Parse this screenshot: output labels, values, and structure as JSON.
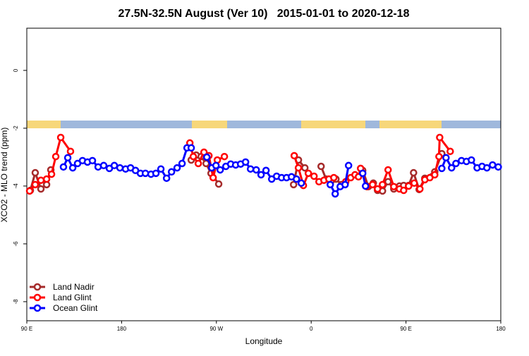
{
  "chart_data": {
    "type": "line",
    "title": "27.5N-32.5N August (Ver 10)   2015-01-01 to 2020-12-18",
    "x_label": "Longitude",
    "y_label": "XCO2 - MLO trend (ppm)",
    "xlim": [
      90,
      540
    ],
    "ylim": [
      -8.66,
      1.46
    ],
    "xticks": [
      {
        "value": 90,
        "label": "90 E"
      },
      {
        "value": 180,
        "label": "180"
      },
      {
        "value": 270,
        "label": "90 W"
      },
      {
        "value": 360,
        "label": "0"
      },
      {
        "value": 450,
        "label": "90 E"
      },
      {
        "value": 540,
        "label": "180"
      }
    ],
    "yticks": [
      0,
      -2,
      -4,
      -6,
      -8
    ],
    "legend": "bottom-left",
    "series": [
      {
        "name": "Land Nadir",
        "color": "#a52a2a",
        "x": [
          93.4,
          98.0,
          103.4,
          108.8,
          112.8,
          185,
          246.1,
          250.8,
          255.5,
          260.2,
          264.9,
          272.2,
          305.7,
          343.3,
          347.9,
          354.0,
          359,
          369.4,
          374.1,
          378.8,
          383.5,
          388.8,
          400,
          408.9,
          414.3,
          419.0,
          423.0,
          427.7,
          433.0,
          438.4,
          443.8,
          447.8,
          452.5,
          457.2,
          462.5,
          467.9,
          477.3,
          484.0
        ],
        "values": [
          -4.15,
          -3.54,
          -4.1,
          -3.95,
          -3.44,
          null,
          -3.1,
          -2.93,
          -2.98,
          -3.22,
          -3.56,
          -3.93,
          null,
          -3.95,
          -3.1,
          -3.37,
          null,
          -3.32,
          -3.76,
          -3.83,
          -3.76,
          -3.95,
          null,
          -3.46,
          -4.02,
          -3.9,
          -4.15,
          -4.17,
          -3.85,
          -4.1,
          -4.0,
          -3.98,
          -3.98,
          -3.54,
          -4.12,
          -3.73,
          -3.51,
          -2.88
        ]
      },
      {
        "name": "Land Glint",
        "color": "#ff0000",
        "x": [
          92.7,
          98.0,
          103.4,
          108.8,
          113.5,
          117.5,
          122.2,
          131.5,
          185,
          244.8,
          248.1,
          252.8,
          258.2,
          262.9,
          266.9,
          270.9,
          277.6,
          305.7,
          343.9,
          347.9,
          352.6,
          357.3,
          362.7,
          367.4,
          372.1,
          376.8,
          381.5,
          386.8,
          392.8,
          397.5,
          401.6,
          404.9,
          406.9,
          412.9,
          418.3,
          423.0,
          427.7,
          433.0,
          438.4,
          443.8,
          447.8,
          452.5,
          457.8,
          463.2,
          467.9,
          472.6,
          477.3,
          481.3,
          482.0,
          492.0
        ],
        "values": [
          -4.17,
          -3.95,
          -3.8,
          -3.76,
          -3.59,
          -2.98,
          -2.32,
          -2.8,
          null,
          -2.51,
          -2.98,
          -3.22,
          -2.83,
          -2.95,
          -3.71,
          -3.1,
          -2.98,
          null,
          -2.95,
          -3.37,
          -3.98,
          -3.56,
          -3.66,
          -3.85,
          -3.8,
          -3.76,
          -3.71,
          null,
          -3.85,
          -3.71,
          -3.61,
          -3.68,
          -3.39,
          -4.02,
          -3.95,
          -4.1,
          -3.95,
          -3.44,
          -4.02,
          -4.1,
          -4.15,
          -4.0,
          -3.9,
          -4.1,
          -3.78,
          -3.71,
          -3.61,
          -2.98,
          -2.32,
          -2.8
        ]
      },
      {
        "name": "Ocean Glint",
        "color": "#0000ff",
        "x": [
          124.8,
          128.9,
          133.6,
          138.2,
          142.9,
          147.6,
          152.3,
          157.7,
          163.0,
          168.4,
          173.1,
          178.4,
          183.8,
          188.5,
          193.2,
          197.9,
          202.6,
          207.9,
          212.6,
          217.3,
          222.7,
          227.4,
          232.7,
          237.4,
          242.1,
          246.1,
          252,
          260.9,
          265.6,
          269.6,
          273.6,
          279.0,
          283.6,
          288.3,
          293.0,
          297.7,
          302.4,
          307.8,
          312.4,
          317.1,
          322.5,
          327.2,
          331.9,
          336.6,
          341.3,
          346.0,
          350.6,
          359,
          378.1,
          382.8,
          387.5,
          392.2,
          395.5,
          402,
          408.9,
          411.6,
          440,
          484.0,
          488.0,
          493.3,
          497.4,
          502.7,
          507.4,
          512.1,
          517.5,
          522.2,
          526.8,
          532.2,
          537.6
        ],
        "values": [
          -3.34,
          -3.02,
          -3.37,
          -3.22,
          -3.12,
          -3.17,
          -3.12,
          -3.34,
          -3.29,
          -3.39,
          -3.29,
          -3.37,
          -3.41,
          -3.37,
          -3.46,
          -3.56,
          -3.56,
          -3.59,
          -3.56,
          -3.41,
          -3.73,
          -3.51,
          -3.37,
          -3.22,
          -2.68,
          -2.68,
          null,
          -3.0,
          -3.37,
          -3.29,
          -3.44,
          -3.32,
          -3.24,
          -3.27,
          -3.24,
          -3.17,
          -3.41,
          -3.44,
          -3.61,
          -3.46,
          -3.76,
          -3.66,
          -3.71,
          -3.71,
          -3.68,
          -3.76,
          -3.9,
          null,
          -3.95,
          -4.27,
          -4.02,
          -3.95,
          -3.29,
          null,
          -3.56,
          -4.0,
          null,
          -3.39,
          -3.02,
          -3.37,
          -3.22,
          -3.12,
          -3.15,
          -3.1,
          -3.37,
          -3.32,
          -3.37,
          -3.27,
          -3.34
        ]
      }
    ]
  }
}
